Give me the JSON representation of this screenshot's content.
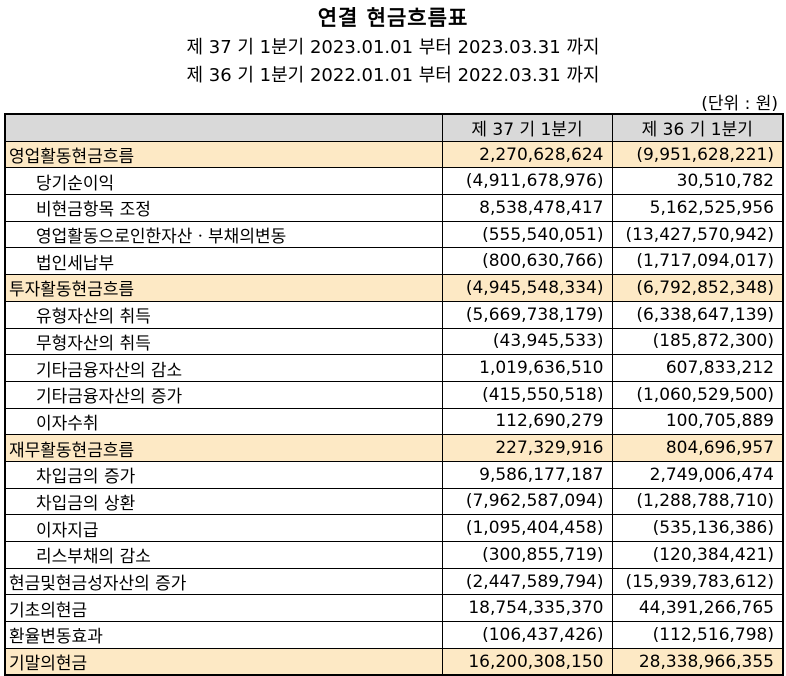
{
  "title": "연결 현금흐름표",
  "period_current": "제 37 기 1분기 2023.01.01 부터 2023.03.31 까지",
  "period_prior": "제 36 기 1분기 2022.01.01 부터 2022.03.31 까지",
  "unit": "(단위 : 원)",
  "columns": [
    "",
    "제 37 기 1분기",
    "제 36 기 1분기"
  ],
  "rows": [
    {
      "label": "영업활동현금흐름",
      "current": "2,270,628,624",
      "prior": "(9,951,628,221)"
    },
    {
      "label": "당기순이익",
      "current": "(4,911,678,976)",
      "prior": "30,510,782"
    },
    {
      "label": "비현금항목 조정",
      "current": "8,538,478,417",
      "prior": "5,162,525,956"
    },
    {
      "label": "영업활동으로인한자산ㆍ부채의변동",
      "current": "(555,540,051)",
      "prior": "(13,427,570,942)"
    },
    {
      "label": "법인세납부",
      "current": "(800,630,766)",
      "prior": "(1,717,094,017)"
    },
    {
      "label": "투자활동현금흐름",
      "current": "(4,945,548,334)",
      "prior": "(6,792,852,348)"
    },
    {
      "label": "유형자산의 취득",
      "current": "(5,669,738,179)",
      "prior": "(6,338,647,139)"
    },
    {
      "label": "무형자산의 취득",
      "current": "(43,945,533)",
      "prior": "(185,872,300)"
    },
    {
      "label": "기타금융자산의 감소",
      "current": "1,019,636,510",
      "prior": "607,833,212"
    },
    {
      "label": "기타금융자산의 증가",
      "current": "(415,550,518)",
      "prior": "(1,060,529,500)"
    },
    {
      "label": "이자수취",
      "current": "112,690,279",
      "prior": "100,705,889"
    },
    {
      "label": "재무활동현금흐름",
      "current": "227,329,916",
      "prior": "804,696,957"
    },
    {
      "label": "차입금의 증가",
      "current": "9,586,177,187",
      "prior": "2,749,006,474"
    },
    {
      "label": "차입금의 상환",
      "current": "(7,962,587,094)",
      "prior": "(1,288,788,710)"
    },
    {
      "label": "이자지급",
      "current": "(1,095,404,458)",
      "prior": "(535,136,386)"
    },
    {
      "label": "리스부채의 감소",
      "current": "(300,855,719)",
      "prior": "(120,384,421)"
    },
    {
      "label": "현금및현금성자산의 증가",
      "current": "(2,447,589,794)",
      "prior": "(15,939,783,612)"
    },
    {
      "label": "기초의현금",
      "current": "18,754,335,370",
      "prior": "44,391,266,765"
    },
    {
      "label": "환율변동효과",
      "current": "(106,437,426)",
      "prior": "(112,516,798)"
    },
    {
      "label": "기말의현금",
      "current": "16,200,308,150",
      "prior": "28,338,966,355"
    }
  ]
}
